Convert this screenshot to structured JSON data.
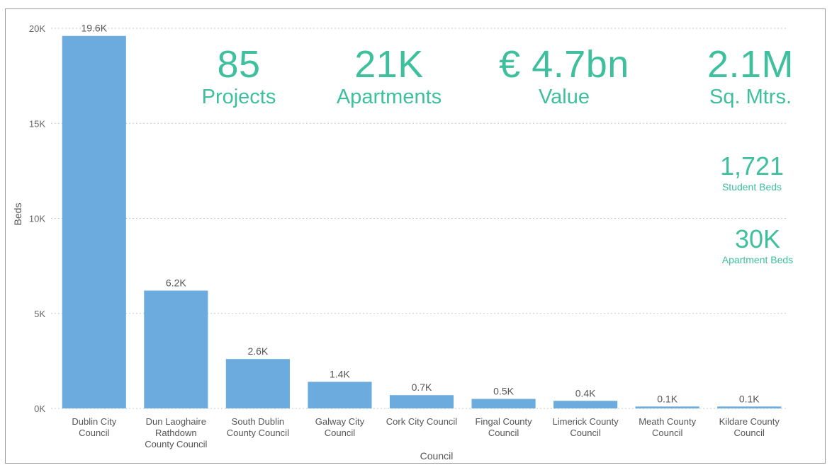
{
  "colors": {
    "accent": "#3ebf9e",
    "bar": "#6cabdd",
    "grid": "#c8c8c8"
  },
  "kpis": [
    {
      "value": "85",
      "label": "Projects"
    },
    {
      "value": "21K",
      "label": "Apartments"
    },
    {
      "value": "€ 4.7bn",
      "label": "Value"
    },
    {
      "value": "2.1M",
      "label": "Sq. Mtrs."
    }
  ],
  "small_kpis": [
    {
      "value": "1,721",
      "label": "Student Beds"
    },
    {
      "value": "30K",
      "label": "Apartment Beds"
    }
  ],
  "chart_data": {
    "type": "bar",
    "xlabel": "Council",
    "ylabel": "Beds",
    "ylim": [
      0,
      20000
    ],
    "yticks": [
      0,
      5000,
      10000,
      15000,
      20000
    ],
    "ytick_labels": [
      "0K",
      "5K",
      "10K",
      "15K",
      "20K"
    ],
    "grid": true,
    "categories": [
      [
        "Dublin City",
        "Council"
      ],
      [
        "Dun Laoghaire",
        "Rathdown",
        "County Council"
      ],
      [
        "South Dublin",
        "County Council"
      ],
      [
        "Galway City",
        "Council"
      ],
      [
        "Cork City Council"
      ],
      [
        "Fingal County",
        "Council"
      ],
      [
        "Limerick County",
        "Council"
      ],
      [
        "Meath County",
        "Council"
      ],
      [
        "Kildare County",
        "Council"
      ]
    ],
    "values": [
      19600,
      6200,
      2600,
      1400,
      700,
      500,
      400,
      100,
      100
    ],
    "data_labels": [
      "19.6K",
      "6.2K",
      "2.6K",
      "1.4K",
      "0.7K",
      "0.5K",
      "0.4K",
      "0.1K",
      "0.1K"
    ]
  }
}
